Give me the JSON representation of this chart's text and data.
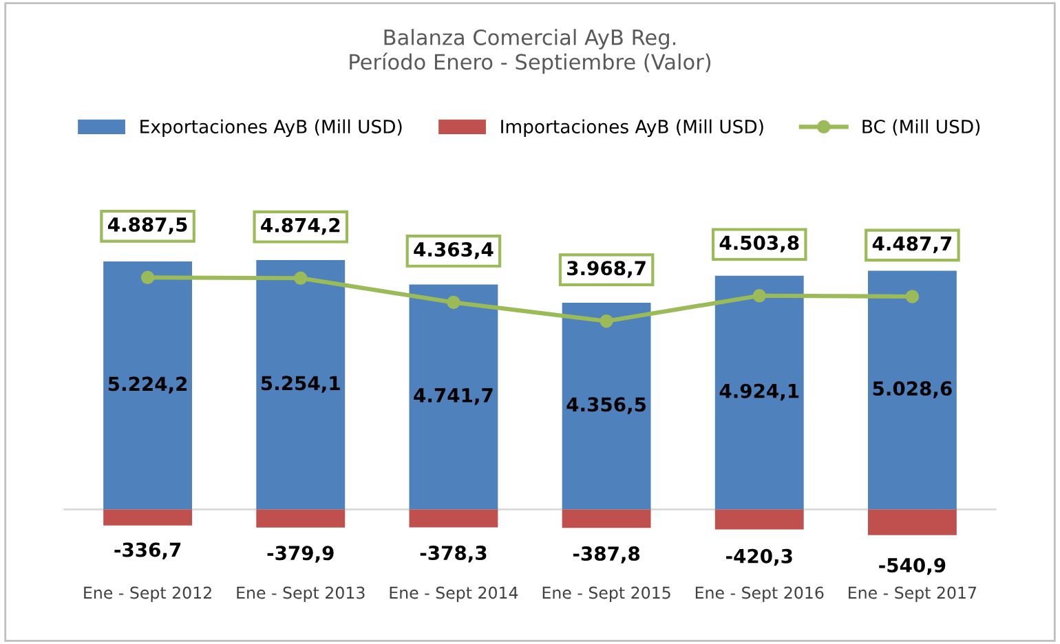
{
  "chart_data": {
    "type": "bar",
    "title": "Balanza Comercial AyB Reg.\nPeríodo Enero - Septiembre (Valor)",
    "categories": [
      "Ene - Sept 2012",
      "Ene - Sept 2013",
      "Ene - Sept 2014",
      "Ene - Sept 2015",
      "Ene - Sept 2016",
      "Ene - Sept 2017"
    ],
    "series": [
      {
        "name": "Exportaciones AyB (Mill USD)",
        "color": "#4f81bd",
        "values": [
          5224.2,
          5254.1,
          4741.7,
          4356.5,
          4924.1,
          5028.6
        ],
        "value_labels": [
          "5.224,2",
          "5.254,1",
          "4.741,7",
          "4.356,5",
          "4.924,1",
          "5.028,6"
        ]
      },
      {
        "name": "Importaciones AyB (Mill USD)",
        "color": "#c0504d",
        "values": [
          -336.7,
          -379.9,
          -378.3,
          -387.8,
          -420.3,
          -540.9
        ],
        "value_labels": [
          "-336,7",
          "-379,9",
          "-378,3",
          "-387,8",
          "-420,3",
          "-540,9"
        ]
      },
      {
        "name": "BC (Mill USD)",
        "type": "line",
        "color": "#9bbb59",
        "marker": "circle",
        "values": [
          4887.5,
          4874.2,
          4363.4,
          3968.7,
          4503.8,
          4487.7
        ],
        "value_labels": [
          "4.887,5",
          "4.874,2",
          "4.363,4",
          "3.968,7",
          "4.503,8",
          "4.487,7"
        ]
      }
    ],
    "stacked": true,
    "legend": "top",
    "grid": false,
    "tick_labels": "x"
  }
}
